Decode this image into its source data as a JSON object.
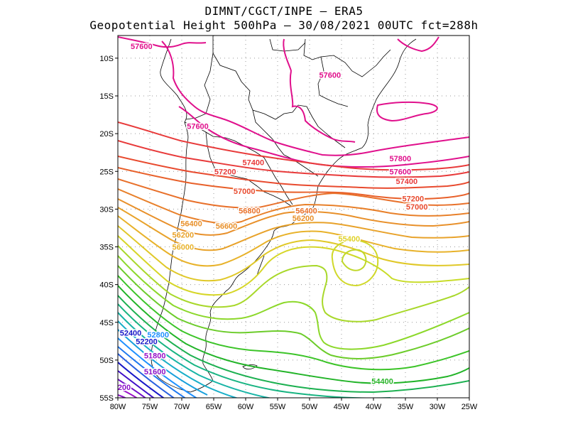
{
  "title_line1": "DIMNT/CGCT/INPE –  ERA5",
  "title_line2": "Geopotential Height 500hPa –  30/08/2021 00UTC fct=288h",
  "map": {
    "lon_range": [
      -80,
      -25
    ],
    "lat_range": [
      -55,
      -7
    ],
    "lon_ticks": [
      {
        "v": -80,
        "label": "80W"
      },
      {
        "v": -75,
        "label": "75W"
      },
      {
        "v": -70,
        "label": "70W"
      },
      {
        "v": -65,
        "label": "65W"
      },
      {
        "v": -60,
        "label": "60W"
      },
      {
        "v": -55,
        "label": "55W"
      },
      {
        "v": -50,
        "label": "50W"
      },
      {
        "v": -45,
        "label": "45W"
      },
      {
        "v": -40,
        "label": "40W"
      },
      {
        "v": -35,
        "label": "35W"
      },
      {
        "v": -30,
        "label": "30W"
      },
      {
        "v": -25,
        "label": "25W"
      }
    ],
    "lat_ticks": [
      {
        "v": -10,
        "label": "10S"
      },
      {
        "v": -15,
        "label": "15S"
      },
      {
        "v": -20,
        "label": "20S"
      },
      {
        "v": -25,
        "label": "25S"
      },
      {
        "v": -30,
        "label": "30S"
      },
      {
        "v": -35,
        "label": "35S"
      },
      {
        "v": -40,
        "label": "40S"
      },
      {
        "v": -45,
        "label": "45S"
      },
      {
        "v": -50,
        "label": "50S"
      },
      {
        "v": -55,
        "label": "55S"
      }
    ],
    "contour_labels": [
      {
        "text": "57600",
        "lon": -76.3,
        "lat": -8.4,
        "color": "#e0108c"
      },
      {
        "text": "57600",
        "lon": -46.8,
        "lat": -12.2,
        "color": "#e0108c"
      },
      {
        "text": "57600",
        "lon": -67.5,
        "lat": -19.0,
        "color": "#e0108c"
      },
      {
        "text": "57800",
        "lon": -35.8,
        "lat": -23.3,
        "color": "#e0108c"
      },
      {
        "text": "57600",
        "lon": -35.8,
        "lat": -25.0,
        "color": "#e0108c"
      },
      {
        "text": "57400",
        "lon": -58.8,
        "lat": -23.8,
        "color": "#e83a3a"
      },
      {
        "text": "57200",
        "lon": -63.2,
        "lat": -25.0,
        "color": "#e83a3a"
      },
      {
        "text": "57400",
        "lon": -34.8,
        "lat": -26.3,
        "color": "#e83a3a"
      },
      {
        "text": "57000",
        "lon": -60.2,
        "lat": -27.6,
        "color": "#e84a2e"
      },
      {
        "text": "57200",
        "lon": -33.8,
        "lat": -28.6,
        "color": "#e84a2e"
      },
      {
        "text": "57000",
        "lon": -33.2,
        "lat": -29.7,
        "color": "#e84a2e"
      },
      {
        "text": "56800",
        "lon": -59.4,
        "lat": -30.2,
        "color": "#e8702a"
      },
      {
        "text": "56400",
        "lon": -50.5,
        "lat": -30.2,
        "color": "#e8702a"
      },
      {
        "text": "56200",
        "lon": -51.0,
        "lat": -31.2,
        "color": "#e8902a"
      },
      {
        "text": "56400",
        "lon": -68.5,
        "lat": -31.9,
        "color": "#e8902a"
      },
      {
        "text": "56600",
        "lon": -63.0,
        "lat": -32.2,
        "color": "#e8902a"
      },
      {
        "text": "56200",
        "lon": -69.8,
        "lat": -33.4,
        "color": "#e8a22a"
      },
      {
        "text": "55400",
        "lon": -43.8,
        "lat": -33.9,
        "color": "#e0d228"
      },
      {
        "text": "56000",
        "lon": -69.8,
        "lat": -35.0,
        "color": "#e8b22a"
      },
      {
        "text": "52400",
        "lon": -78.0,
        "lat": -46.4,
        "color": "#1818c8"
      },
      {
        "text": "52800",
        "lon": -73.7,
        "lat": -46.6,
        "color": "#1e90ff"
      },
      {
        "text": "52200",
        "lon": -75.5,
        "lat": -47.5,
        "color": "#1818c8"
      },
      {
        "text": "51800",
        "lon": -74.2,
        "lat": -49.4,
        "color": "#9a10c8"
      },
      {
        "text": "51600",
        "lon": -74.2,
        "lat": -51.5,
        "color": "#8c10c8"
      },
      {
        "text": "54400",
        "lon": -38.6,
        "lat": -52.8,
        "color": "#28b428"
      },
      {
        "text": "200",
        "lon": -79.0,
        "lat": -53.6,
        "color": "#8c10c8"
      }
    ]
  }
}
